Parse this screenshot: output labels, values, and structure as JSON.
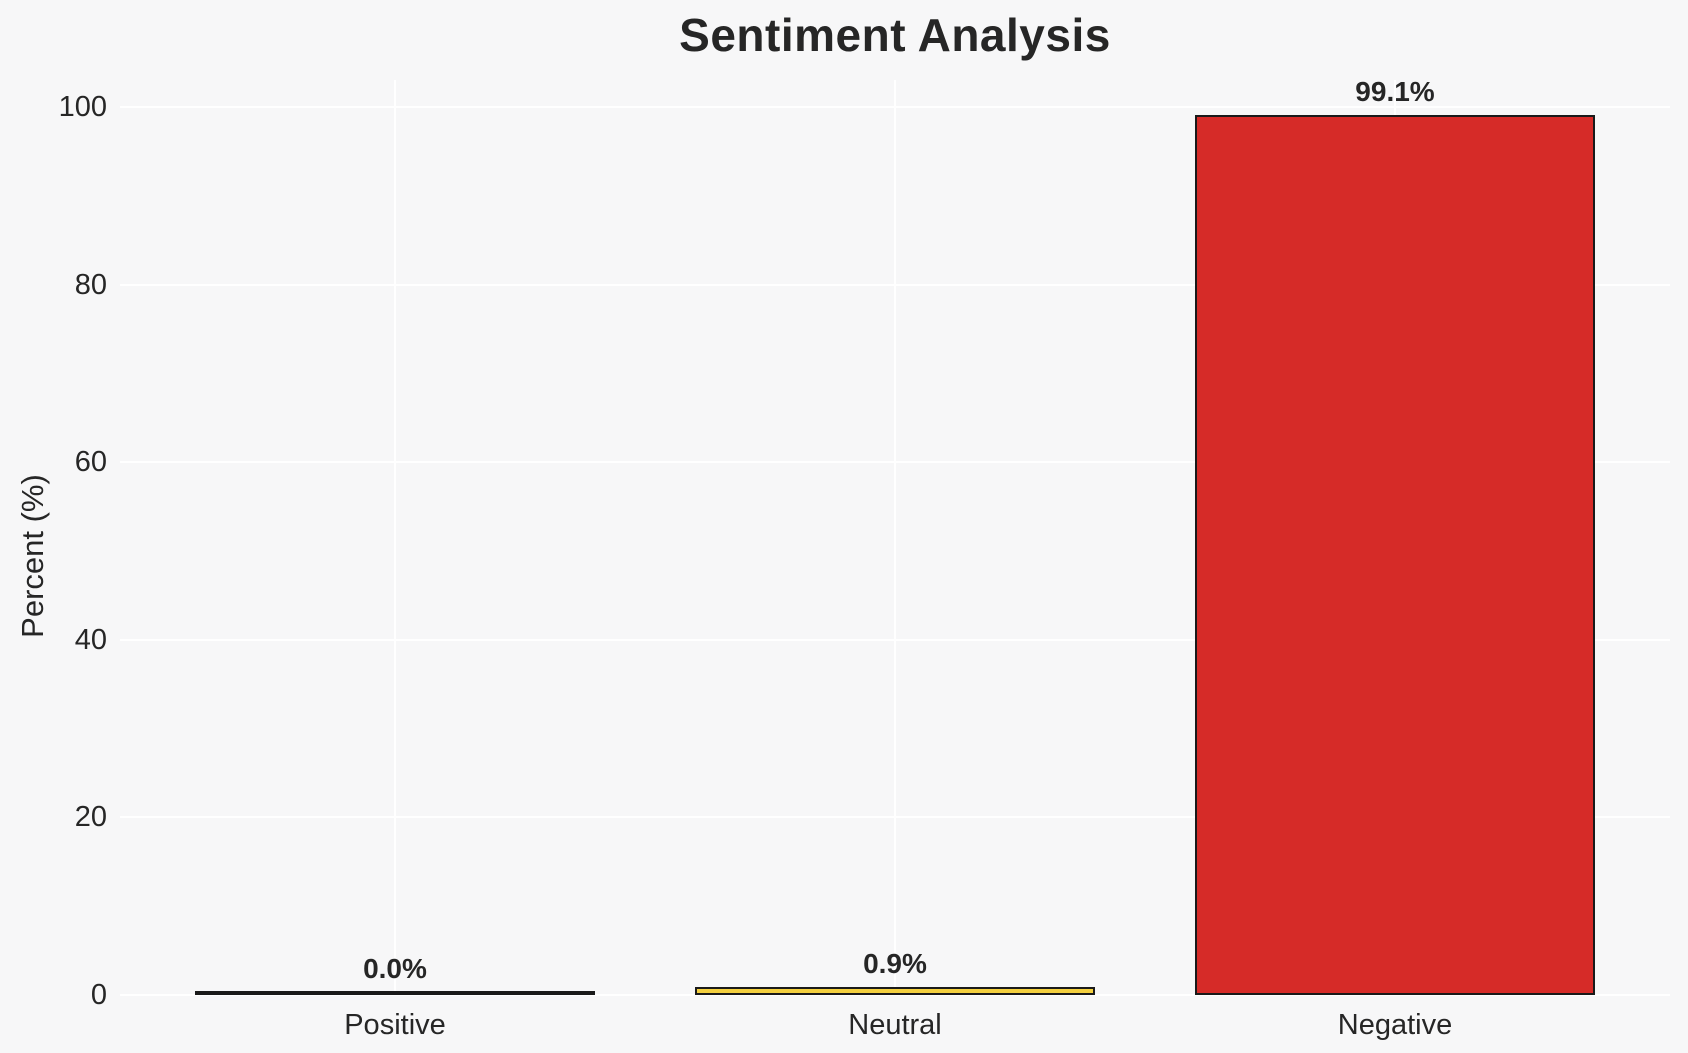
{
  "chart_data": {
    "type": "bar",
    "title": "Sentiment Analysis",
    "ylabel": "Percent (%)",
    "xlabel": "",
    "categories": [
      "Positive",
      "Neutral",
      "Negative"
    ],
    "values": [
      0.0,
      0.9,
      99.1
    ],
    "value_labels": [
      "0.0%",
      "0.9%",
      "99.1%"
    ],
    "ylim": [
      0,
      100
    ],
    "yticks": [
      0,
      20,
      40,
      60,
      80,
      100
    ],
    "grid": "on",
    "legend": "none",
    "colors": {
      "bar_fills": [
        "none",
        "#f4d03f",
        "#d62b28"
      ],
      "bar_edge": "#1a1a1a",
      "grid": "#ffffff",
      "background": "#f7f7f8",
      "text": "#262626"
    }
  }
}
